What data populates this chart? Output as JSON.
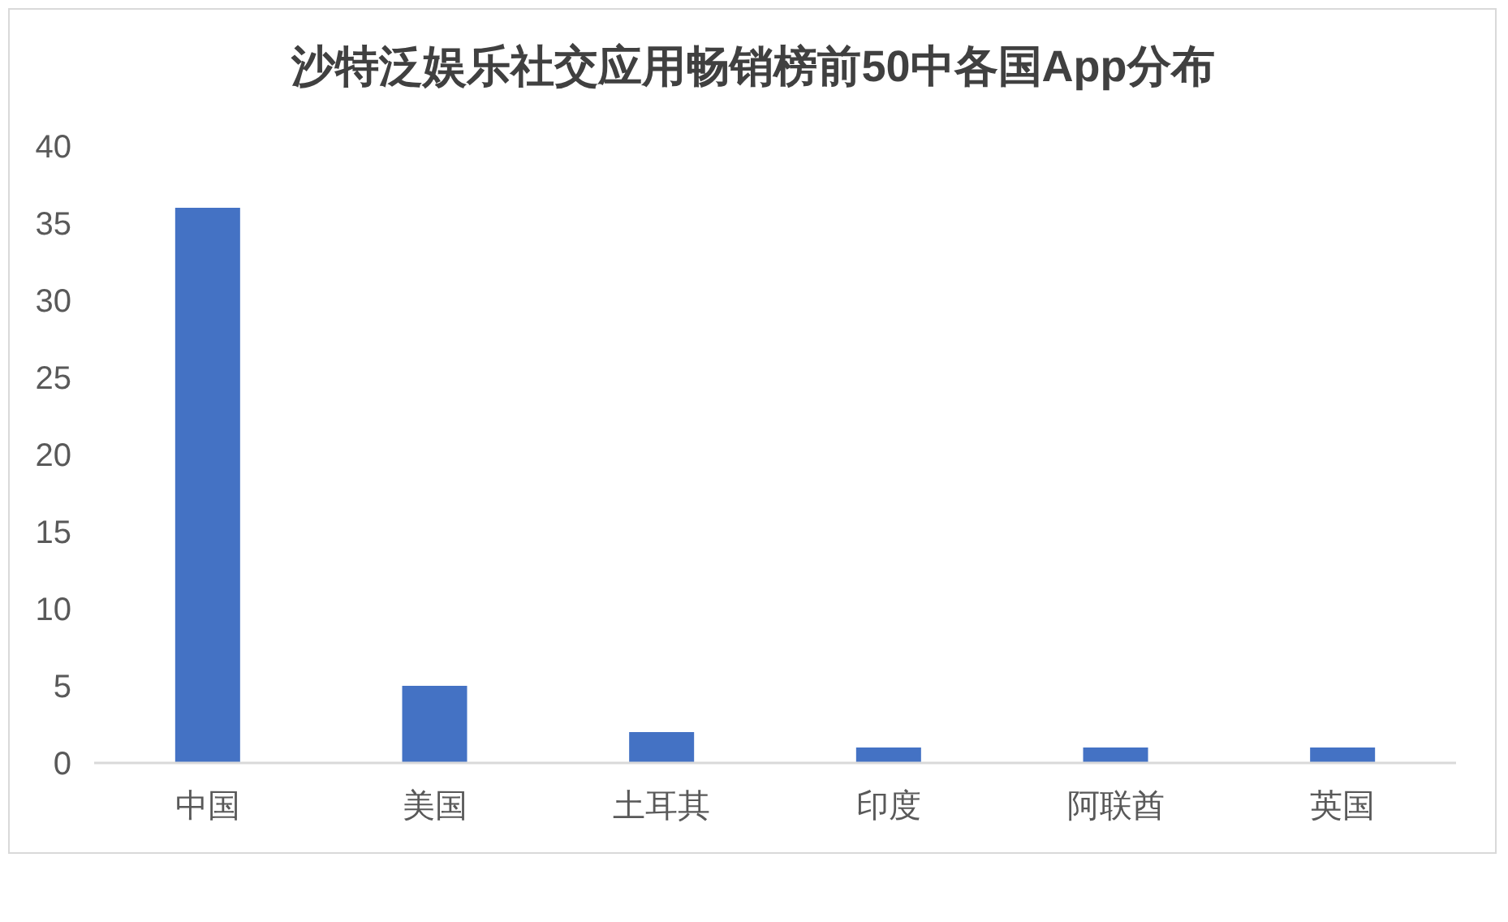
{
  "chart_data": {
    "type": "bar",
    "title": "沙特泛娱乐社交应用畅销榜前50中各国App分布",
    "categories": [
      "中国",
      "美国",
      "土耳其",
      "印度",
      "阿联酋",
      "英国"
    ],
    "values": [
      36,
      5,
      2,
      1,
      1,
      1
    ],
    "color": "#4472c4",
    "ylim": [
      0,
      40
    ],
    "yticks": [
      0,
      5,
      10,
      15,
      20,
      25,
      30,
      35,
      40
    ],
    "grid": false
  }
}
